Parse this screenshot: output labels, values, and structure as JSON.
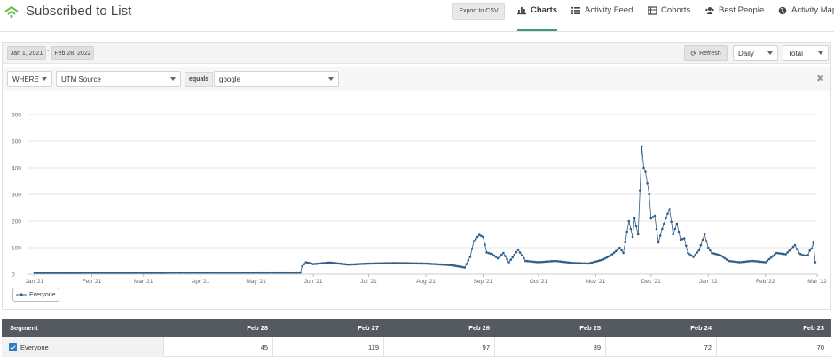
{
  "header": {
    "title": "Subscribed to List",
    "export_label": "Export to CSV",
    "nav": [
      {
        "label": "Charts",
        "icon": "bar-chart-icon",
        "active": true
      },
      {
        "label": "Activity Feed",
        "icon": "list-icon",
        "active": false
      },
      {
        "label": "Cohorts",
        "icon": "table-icon",
        "active": false
      },
      {
        "label": "Best People",
        "icon": "users-icon",
        "active": false
      },
      {
        "label": "Activity Map",
        "icon": "globe-icon",
        "active": false
      }
    ]
  },
  "controls": {
    "start_date": "Jan 1, 2021",
    "end_date": "Feb 28, 2022",
    "separator": "-",
    "refresh_label": "Refresh",
    "interval": "Daily",
    "aggregation": "Total"
  },
  "filter": {
    "where": "WHERE",
    "property": "UTM Source",
    "operator": "equals",
    "value": "google"
  },
  "chart_data": {
    "type": "line",
    "x_ticks": [
      "Jan '21",
      "Feb '21",
      "Mar '21",
      "Apr '21",
      "May '21",
      "Jun '21",
      "Jul '21",
      "Aug '21",
      "Sep '21",
      "Oct '21",
      "Nov '21",
      "Dec '21",
      "Jan '22",
      "Feb '22",
      "Mar '22"
    ],
    "y_ticks": [
      "0",
      "100",
      "200",
      "300",
      "400",
      "500",
      "600"
    ],
    "ylim": [
      0,
      600
    ],
    "grid": true,
    "legend_position": "bottom-left",
    "series": [
      {
        "name": "Everyone",
        "color": "#2f5f8a",
        "points": [
          [
            "2021-01-01",
            5
          ],
          [
            "2021-05-25",
            6
          ],
          [
            "2021-05-26",
            30
          ],
          [
            "2021-05-28",
            45
          ],
          [
            "2021-06-01",
            38
          ],
          [
            "2021-06-10",
            44
          ],
          [
            "2021-06-20",
            36
          ],
          [
            "2021-07-01",
            40
          ],
          [
            "2021-07-15",
            42
          ],
          [
            "2021-08-01",
            40
          ],
          [
            "2021-08-15",
            34
          ],
          [
            "2021-08-22",
            25
          ],
          [
            "2021-08-25",
            65
          ],
          [
            "2021-08-27",
            125
          ],
          [
            "2021-08-30",
            148
          ],
          [
            "2021-09-01",
            140
          ],
          [
            "2021-09-03",
            82
          ],
          [
            "2021-09-06",
            75
          ],
          [
            "2021-09-09",
            60
          ],
          [
            "2021-09-12",
            80
          ],
          [
            "2021-09-15",
            45
          ],
          [
            "2021-09-20",
            92
          ],
          [
            "2021-09-24",
            50
          ],
          [
            "2021-10-01",
            45
          ],
          [
            "2021-10-10",
            50
          ],
          [
            "2021-10-20",
            42
          ],
          [
            "2021-10-28",
            40
          ],
          [
            "2021-11-05",
            55
          ],
          [
            "2021-11-10",
            75
          ],
          [
            "2021-11-14",
            100
          ],
          [
            "2021-11-16",
            80
          ],
          [
            "2021-11-19",
            200
          ],
          [
            "2021-11-21",
            140
          ],
          [
            "2021-11-22",
            210
          ],
          [
            "2021-11-24",
            150
          ],
          [
            "2021-11-26",
            480
          ],
          [
            "2021-11-27",
            400
          ],
          [
            "2021-11-28",
            385
          ],
          [
            "2021-11-30",
            300
          ],
          [
            "2021-12-01",
            210
          ],
          [
            "2021-12-03",
            220
          ],
          [
            "2021-12-05",
            120
          ],
          [
            "2021-12-07",
            170
          ],
          [
            "2021-12-09",
            210
          ],
          [
            "2021-12-11",
            245
          ],
          [
            "2021-12-13",
            150
          ],
          [
            "2021-12-15",
            190
          ],
          [
            "2021-12-17",
            130
          ],
          [
            "2021-12-19",
            135
          ],
          [
            "2021-12-21",
            80
          ],
          [
            "2021-12-24",
            65
          ],
          [
            "2021-12-27",
            90
          ],
          [
            "2021-12-30",
            150
          ],
          [
            "2022-01-01",
            100
          ],
          [
            "2022-01-03",
            80
          ],
          [
            "2022-01-08",
            70
          ],
          [
            "2022-01-12",
            50
          ],
          [
            "2022-01-18",
            45
          ],
          [
            "2022-01-25",
            50
          ],
          [
            "2022-02-01",
            45
          ],
          [
            "2022-02-07",
            80
          ],
          [
            "2022-02-12",
            75
          ],
          [
            "2022-02-17",
            110
          ],
          [
            "2022-02-19",
            80
          ],
          [
            "2022-02-21",
            72
          ],
          [
            "2022-02-23",
            70
          ],
          [
            "2022-02-24",
            72
          ],
          [
            "2022-02-25",
            89
          ],
          [
            "2022-02-26",
            97
          ],
          [
            "2022-02-27",
            119
          ],
          [
            "2022-02-28",
            45
          ]
        ]
      }
    ]
  },
  "table": {
    "segment_header": "Segment",
    "columns": [
      "Feb 28",
      "Feb 27",
      "Feb 26",
      "Feb 25",
      "Feb 24",
      "Feb 23"
    ],
    "rows": [
      {
        "segment": "Everyone",
        "checked": true,
        "values": [
          "45",
          "119",
          "97",
          "89",
          "72",
          "70"
        ]
      }
    ]
  }
}
